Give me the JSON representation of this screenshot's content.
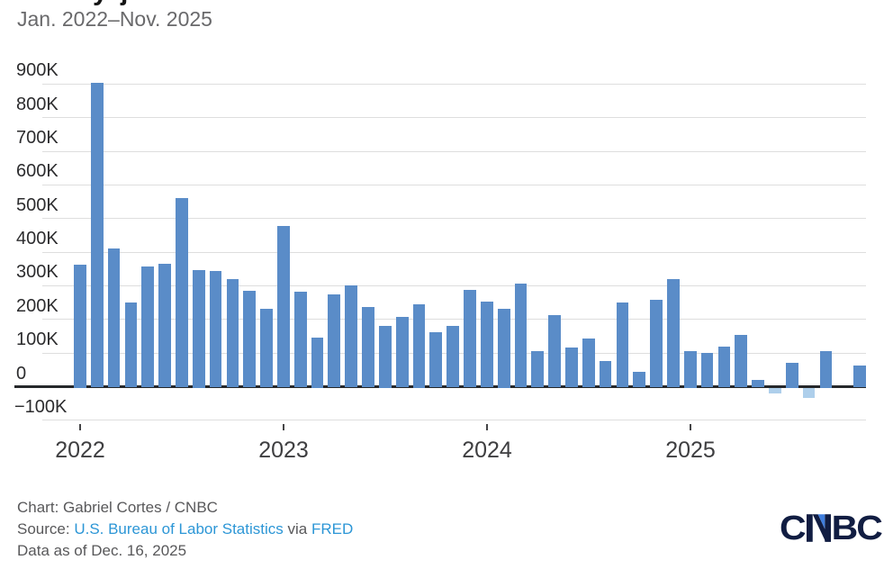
{
  "page": {
    "clipped_title_glyphs": "y j",
    "subtitle": "Jan. 2022–Nov. 2025"
  },
  "footer": {
    "credit": "Chart: Gabriel Cortes / CNBC",
    "source_prefix": "Source: ",
    "source_link_bls": "U.S. Bureau of Labor Statistics",
    "source_middle": " via ",
    "source_link_fred": "FRED",
    "data_as_of": "Data as of Dec. 16, 2025",
    "logo_text": "CNBC"
  },
  "colors": {
    "bar_positive": "#5a8cc8",
    "bar_negative": "#aecfeb",
    "gridline": "#dedede",
    "zero_axis": "#26282b",
    "subtitle_gray": "#69696b",
    "footer_gray": "#58585a",
    "link_blue": "#2c96d6",
    "logo_navy": "#111d42",
    "logo_blue": "#3f7edd"
  },
  "chart_data": {
    "type": "bar",
    "title": "",
    "subtitle": "Jan. 2022–Nov. 2025",
    "unit": "jobs, thousands (K)",
    "ylim": [
      -150,
      950
    ],
    "grid": true,
    "x": [
      "Jan. 2022",
      "Feb. 2022",
      "Mar. 2022",
      "Apr. 2022",
      "May 2022",
      "Jun. 2022",
      "Jul. 2022",
      "Aug. 2022",
      "Sep. 2022",
      "Oct. 2022",
      "Nov. 2022",
      "Dec. 2022",
      "Jan. 2023",
      "Feb. 2023",
      "Mar. 2023",
      "Apr. 2023",
      "May 2023",
      "Jun. 2023",
      "Jul. 2023",
      "Aug. 2023",
      "Sep. 2023",
      "Oct. 2023",
      "Nov. 2023",
      "Dec. 2023",
      "Jan. 2024",
      "Feb. 2024",
      "Mar. 2024",
      "Apr. 2024",
      "May 2024",
      "Jun. 2024",
      "Jul. 2024",
      "Aug. 2024",
      "Sep. 2024",
      "Oct. 2024",
      "Nov. 2024",
      "Dec. 2024",
      "Jan. 2025",
      "Feb. 2025",
      "Mar. 2025",
      "Apr. 2025",
      "May 2025",
      "Jun. 2025",
      "Jul. 2025",
      "Aug. 2025",
      "Sep. 2025",
      "Oct. 2025",
      "Nov. 2025"
    ],
    "values": [
      364,
      904,
      410,
      251,
      357,
      366,
      560,
      348,
      343,
      319,
      284,
      232,
      479,
      283,
      146,
      275,
      301,
      238,
      182,
      207,
      245,
      163,
      180,
      288,
      252,
      233,
      307,
      106,
      213,
      117,
      143,
      76,
      251,
      43,
      259,
      321,
      107,
      100,
      118,
      155,
      19,
      -15,
      71,
      -29,
      107,
      null,
      62
    ],
    "values_note": "thousands of jobs; Oct. 2025 has no bar (no data shown)",
    "y_ticks": [
      {
        "label": "900K",
        "value": 900
      },
      {
        "label": "800K",
        "value": 800
      },
      {
        "label": "700K",
        "value": 700
      },
      {
        "label": "600K",
        "value": 600
      },
      {
        "label": "500K",
        "value": 500
      },
      {
        "label": "400K",
        "value": 400
      },
      {
        "label": "300K",
        "value": 300
      },
      {
        "label": "200K",
        "value": 200
      },
      {
        "label": "100K",
        "value": 100
      },
      {
        "label": "0",
        "value": 0
      },
      {
        "label": "−100K",
        "value": -100
      }
    ],
    "x_ticks": [
      {
        "label": "2022",
        "index": 0
      },
      {
        "label": "2023",
        "index": 12
      },
      {
        "label": "2024",
        "index": 24
      },
      {
        "label": "2025",
        "index": 36
      }
    ],
    "legend": null
  }
}
